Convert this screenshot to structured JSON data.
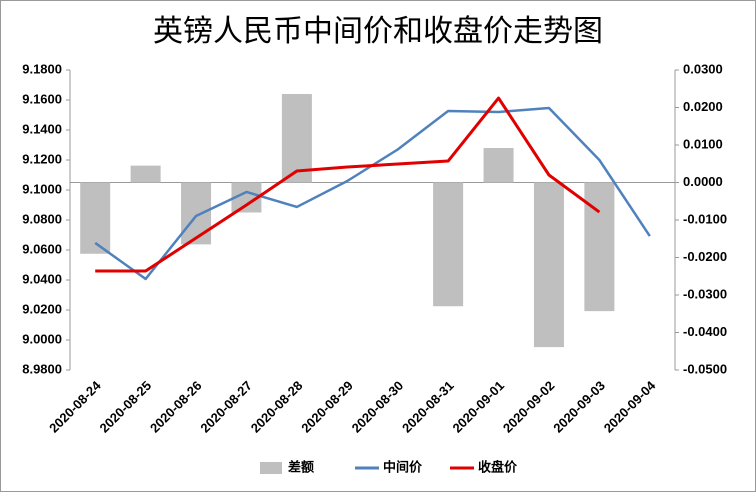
{
  "chart_data": {
    "type": "combo",
    "title": "英镑人民币中间价和收盘价走势图",
    "categories": [
      "2020-08-24",
      "2020-08-25",
      "2020-08-26",
      "2020-08-27",
      "2020-08-28",
      "2020-08-29",
      "2020-08-30",
      "2020-08-31",
      "2020-09-01",
      "2020-09-02",
      "2020-09-03",
      "2020-09-04"
    ],
    "series": [
      {
        "name": "差额",
        "type": "bar",
        "axis": "y2",
        "color": "#bfbfbf",
        "values": [
          -0.019,
          0.0045,
          -0.0165,
          -0.008,
          0.0236,
          null,
          null,
          -0.033,
          0.0092,
          -0.0439,
          -0.0343,
          null
        ]
      },
      {
        "name": "中间价",
        "type": "line",
        "color": "#4f81bd",
        "values": [
          9.0647,
          9.0407,
          9.0827,
          9.0987,
          9.0887,
          9.106,
          9.127,
          9.1527,
          9.152,
          9.1547,
          9.12,
          9.0693
        ]
      },
      {
        "name": "收盘价",
        "type": "line",
        "color": "#e00000",
        "values": [
          9.046,
          9.046,
          9.068,
          9.09,
          9.1127,
          9.1153,
          9.1173,
          9.1193,
          9.1613,
          9.11,
          9.0853,
          null
        ]
      }
    ],
    "ylim": [
      8.98,
      9.18
    ],
    "yticks": [
      {
        "value": 9.18,
        "label": "9.1800"
      },
      {
        "value": 9.16,
        "label": "9.1600"
      },
      {
        "value": 9.14,
        "label": "9.1400"
      },
      {
        "value": 9.12,
        "label": "9.1200"
      },
      {
        "value": 9.1,
        "label": "9.1000"
      },
      {
        "value": 9.08,
        "label": "9.0800"
      },
      {
        "value": 9.06,
        "label": "9.0600"
      },
      {
        "value": 9.04,
        "label": "9.0400"
      },
      {
        "value": 9.02,
        "label": "9.0200"
      },
      {
        "value": 9.0,
        "label": "9.0000"
      },
      {
        "value": 8.98,
        "label": "8.9800"
      }
    ],
    "y2lim": [
      -0.05,
      0.03
    ],
    "y2ticks": [
      {
        "value": 0.03,
        "label": "0.0300"
      },
      {
        "value": 0.02,
        "label": "0.0200"
      },
      {
        "value": 0.01,
        "label": "0.0100"
      },
      {
        "value": 0.0,
        "label": "0.0000"
      },
      {
        "value": -0.01,
        "label": "-0.0100"
      },
      {
        "value": -0.02,
        "label": "-0.0200"
      },
      {
        "value": -0.03,
        "label": "-0.0300"
      },
      {
        "value": -0.04,
        "label": "-0.0400"
      },
      {
        "value": -0.05,
        "label": "-0.0500"
      }
    ],
    "legend": "bottom"
  }
}
